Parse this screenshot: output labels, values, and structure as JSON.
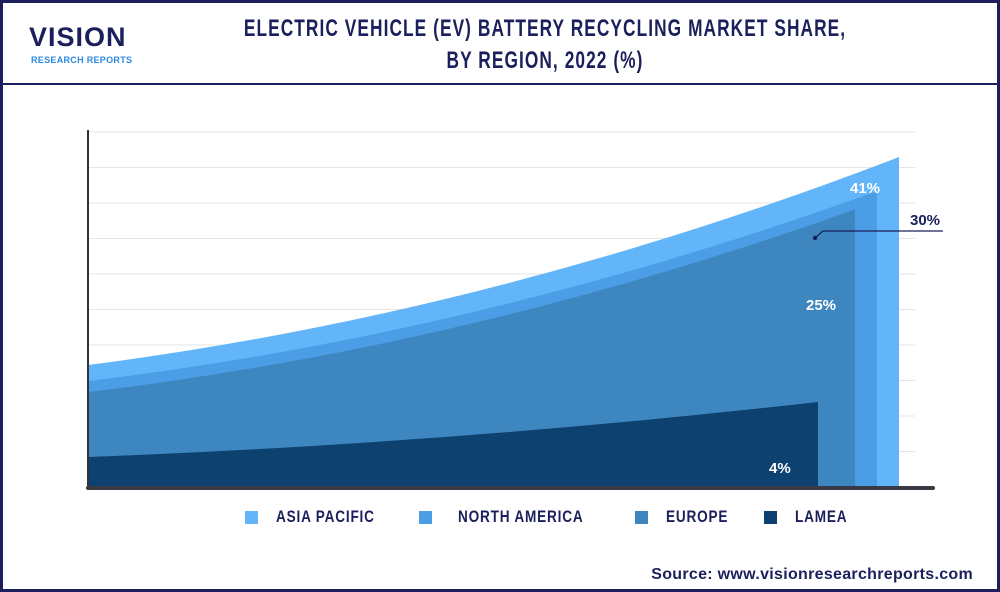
{
  "logo": {
    "main": "VISION",
    "sub": "RESEARCH REPORTS"
  },
  "header": {
    "title_line1": "ELECTRIC VEHICLE (EV) BATTERY RECYCLING MARKET SHARE,",
    "title_line2": "BY REGION, 2022 (%)"
  },
  "chart_data": {
    "type": "area",
    "title": "ELECTRIC VEHICLE (EV) BATTERY RECYCLING MARKET SHARE, BY REGION, 2022 (%)",
    "categories": [
      "ASIA PACIFIC",
      "NORTH AMERICA",
      "EUROPE",
      "LAMEA"
    ],
    "values": [
      41,
      30,
      25,
      4
    ],
    "data_labels": [
      "41%",
      "30%",
      "25%",
      "4%"
    ],
    "colors": [
      "#62b5f9",
      "#4b9ee5",
      "#3e86c0",
      "#0d416f"
    ],
    "grid": true,
    "legend": "bottom"
  },
  "source": "Source: www.visionresearchreports.com"
}
